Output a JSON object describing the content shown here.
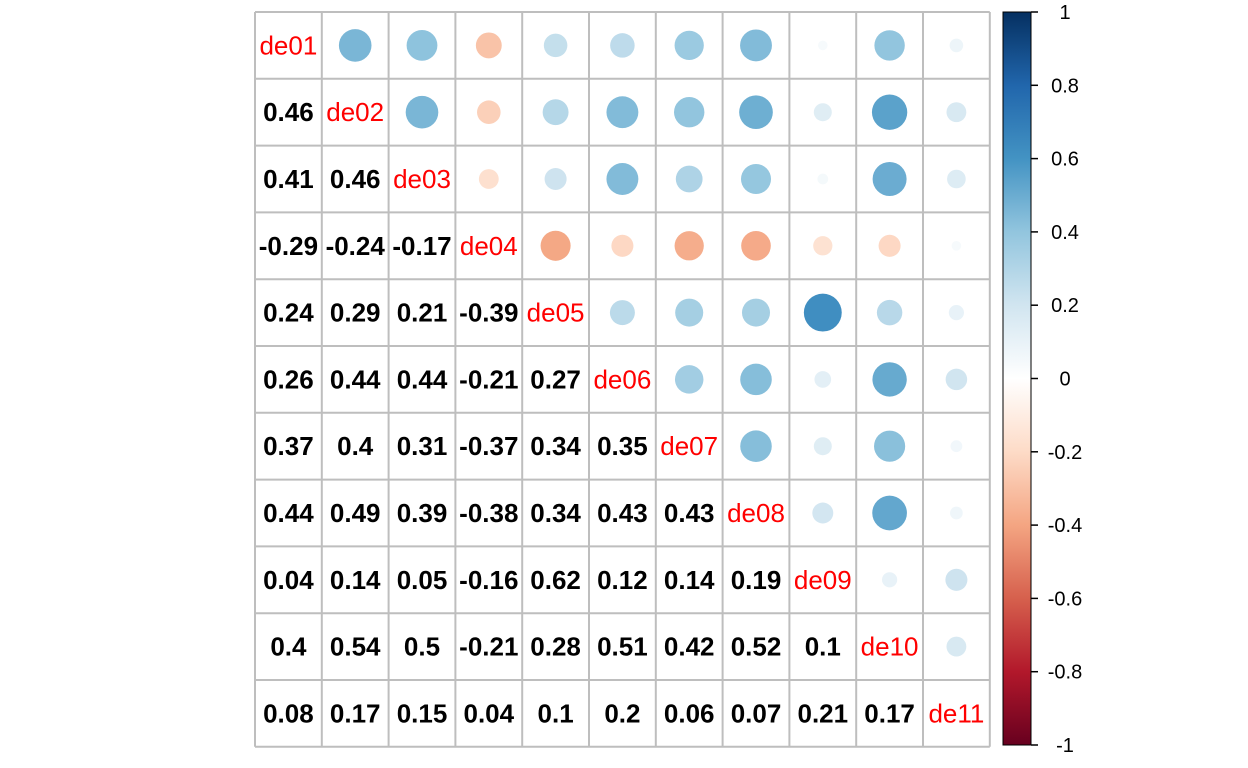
{
  "chart_data": {
    "type": "heatmap",
    "variables": [
      "de01",
      "de02",
      "de03",
      "de04",
      "de05",
      "de06",
      "de07",
      "de08",
      "de09",
      "de10",
      "de11"
    ],
    "lower_labels": [
      [],
      [
        "0.46"
      ],
      [
        "0.41",
        "0.46"
      ],
      [
        "-0.29",
        "-0.24",
        "-0.17"
      ],
      [
        "0.24",
        "0.29",
        "0.21",
        "-0.39"
      ],
      [
        "0.26",
        "0.44",
        "0.44",
        "-0.21",
        "0.27"
      ],
      [
        "0.37",
        "0.4",
        "0.31",
        "-0.37",
        "0.34",
        "0.35"
      ],
      [
        "0.44",
        "0.49",
        "0.39",
        "-0.38",
        "0.34",
        "0.43",
        "0.43"
      ],
      [
        "0.04",
        "0.14",
        "0.05",
        "-0.16",
        "0.62",
        "0.12",
        "0.14",
        "0.19"
      ],
      [
        "0.4",
        "0.54",
        "0.5",
        "-0.21",
        "0.28",
        "0.51",
        "0.42",
        "0.52",
        "0.1"
      ],
      [
        "0.08",
        "0.17",
        "0.15",
        "0.04",
        "0.1",
        "0.2",
        "0.06",
        "0.07",
        "0.21",
        "0.17"
      ]
    ],
    "colorbar": {
      "range": [
        -1,
        1
      ],
      "tick_labels": [
        "1",
        "0.8",
        "0.6",
        "0.4",
        "0.2",
        "0",
        "-0.2",
        "-0.4",
        "-0.6",
        "-0.8",
        "-1"
      ],
      "colors": [
        "#67001F",
        "#B2182B",
        "#D6604D",
        "#F4A582",
        "#FDDBC7",
        "#FFFFFF",
        "#D1E5F0",
        "#92C5DE",
        "#4393C3",
        "#2166AC",
        "#053061"
      ]
    },
    "diagonal_label_color": "#FF0000",
    "lower_style": "number",
    "upper_style": "circle",
    "grid": true,
    "legend_position": "right"
  }
}
